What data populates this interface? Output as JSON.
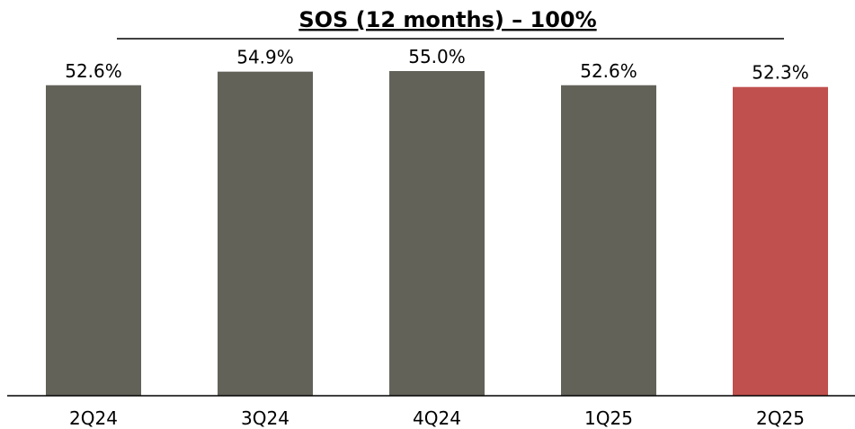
{
  "chart_data": {
    "type": "bar",
    "title": "SOS (12 months) – 100%",
    "xlabel": "",
    "ylabel": "",
    "categories": [
      "2Q24",
      "3Q24",
      "4Q24",
      "1Q25",
      "2Q25"
    ],
    "values": [
      52.6,
      54.9,
      55.0,
      52.6,
      52.3
    ],
    "value_labels": [
      "52.6%",
      "54.9%",
      "55.0%",
      "52.6%",
      "52.3%"
    ],
    "unit": "%",
    "ylim": [
      0,
      55.0
    ],
    "grid": false,
    "legend": "none",
    "colors": {
      "default_bar": "#636259",
      "highlight_bar": "#C0504D",
      "axis": "#000000",
      "title_rule": "#000000"
    },
    "highlight_index": 4
  }
}
